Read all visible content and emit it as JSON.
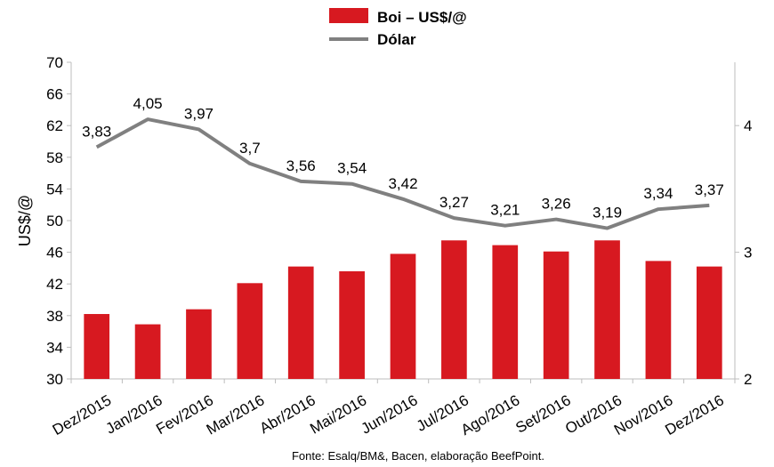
{
  "chart_data": {
    "type": "bar",
    "categories": [
      "Dez/2015",
      "Jan/2016",
      "Fev/2016",
      "Mar/2016",
      "Abr/2016",
      "Mai/2016",
      "Jun/2016",
      "Jul/2016",
      "Ago/2016",
      "Set/2016",
      "Out/2016",
      "Nov/2016",
      "Dez/2016"
    ],
    "series": [
      {
        "name": "Boi – US$/@",
        "type": "bar",
        "axis": "left",
        "color": "#d71920",
        "values": [
          38.2,
          36.9,
          38.8,
          42.1,
          44.2,
          43.6,
          45.8,
          47.5,
          46.9,
          46.1,
          47.5,
          44.9,
          44.2
        ]
      },
      {
        "name": "Dólar",
        "type": "line",
        "axis": "right",
        "color": "#808080",
        "values": [
          3.83,
          4.05,
          3.97,
          3.7,
          3.56,
          3.54,
          3.42,
          3.27,
          3.21,
          3.26,
          3.19,
          3.34,
          3.37
        ],
        "labels": [
          "3,83",
          "4,05",
          "3,97",
          "3,7",
          "3,56",
          "3,54",
          "3,42",
          "3,27",
          "3,21",
          "3,26",
          "3,19",
          "3,34",
          "3,37"
        ]
      }
    ],
    "ylabel": "US$/@",
    "ylim": [
      30,
      70
    ],
    "yticks": [
      "30",
      "34",
      "38",
      "42",
      "46",
      "50",
      "54",
      "58",
      "62",
      "66",
      "70"
    ],
    "y2lim": [
      2,
      4.5
    ],
    "y2ticks": [
      "2",
      "3",
      "4"
    ],
    "legend_position": "top-center",
    "grid": false
  },
  "source": "Fonte: Esalq/BM&, Bacen, elaboração BeefPoint."
}
